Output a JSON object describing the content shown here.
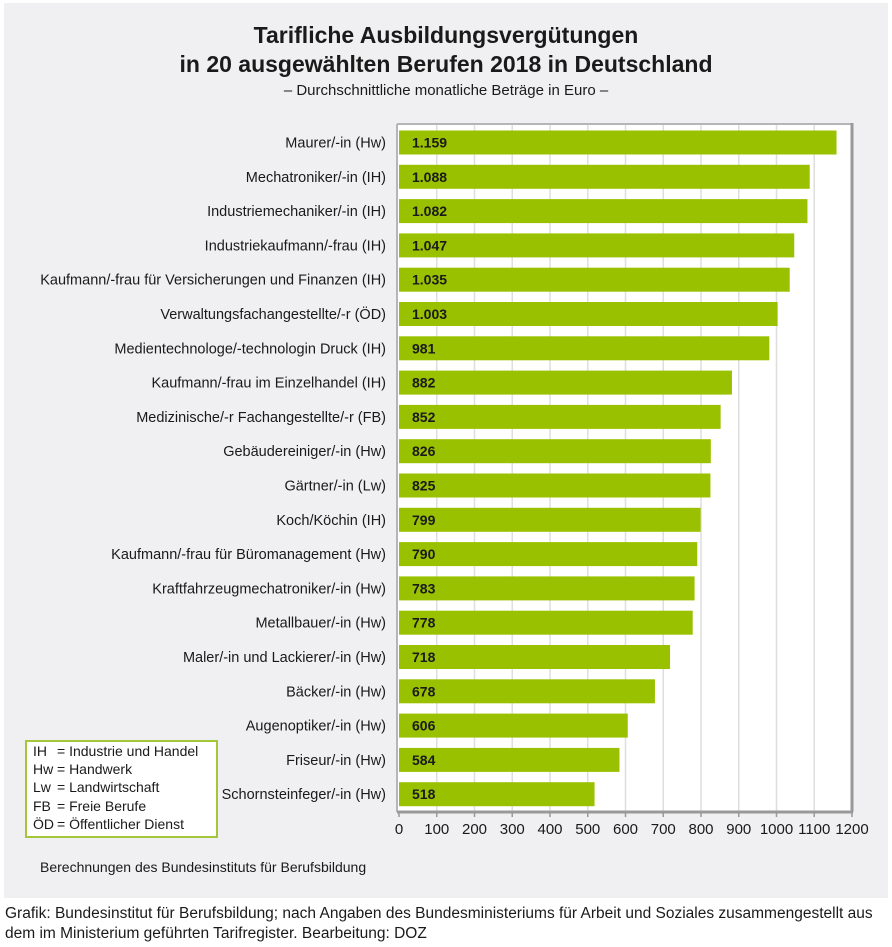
{
  "colors": {
    "bar": "#9ac100",
    "panel_background": "#f0eff1",
    "plot_background": "#ffffff",
    "grid": "#dedede",
    "axis_frame": "#999999",
    "legend_border": "#a4c639"
  },
  "chart_data": {
    "type": "bar",
    "orientation": "horizontal",
    "title": "Tarifliche Ausbildungsvergütungen in 20 ausgewählten Berufen 2018 in Deutschland",
    "title_lines": [
      "Tarifliche Ausbildungsvergütungen",
      "in 20 ausgewählten Berufen 2018 in Deutschland"
    ],
    "subtitle": "– Durchschnittliche monatliche Beträge in Euro –",
    "xlabel": "",
    "ylabel": "",
    "xlim": [
      0,
      1200
    ],
    "xticks": [
      0,
      100,
      200,
      300,
      400,
      500,
      600,
      700,
      800,
      900,
      1000,
      1100,
      1200
    ],
    "grid": true,
    "categories": [
      "Maurer/-in (Hw)",
      "Mechatroniker/-in (IH)",
      "Industriemechaniker/-in (IH)",
      "Industriekaufmann/-frau (IH)",
      "Kaufmann/-frau für Versicherungen und Finanzen (IH)",
      "Verwaltungsfachangestellte/-r (ÖD)",
      "Medientechnologe/-technologin Druck (IH)",
      "Kaufmann/-frau im Einzelhandel (IH)",
      "Medizinische/-r Fachangestellte/-r (FB)",
      "Gebäudereiniger/-in (Hw)",
      "Gärtner/-in (Lw)",
      "Koch/Köchin (IH)",
      "Kaufmann/-frau für Büromanagement (Hw)",
      "Kraftfahrzeugmechatroniker/-in (Hw)",
      "Metallbauer/-in (Hw)",
      "Maler/-in und Lackierer/-in (Hw)",
      "Bäcker/-in (Hw)",
      "Augenoptiker/-in (Hw)",
      "Friseur/-in (Hw)",
      "Schornsteinfeger/-in (Hw)"
    ],
    "values": [
      1159,
      1088,
      1082,
      1047,
      1035,
      1003,
      981,
      882,
      852,
      826,
      825,
      799,
      790,
      783,
      778,
      718,
      678,
      606,
      584,
      518
    ],
    "value_labels": [
      "1.159",
      "1.088",
      "1.082",
      "1.047",
      "1.035",
      "1.003",
      "981",
      "882",
      "852",
      "826",
      "825",
      "799",
      "790",
      "783",
      "778",
      "718",
      "678",
      "606",
      "584",
      "518"
    ],
    "legend": {
      "placement": "bottom-left",
      "entries": [
        {
          "abbr": "IH",
          "text": "= Industrie und Handel"
        },
        {
          "abbr": "Hw",
          "text": "= Handwerk"
        },
        {
          "abbr": "Lw",
          "text": "= Landwirtschaft"
        },
        {
          "abbr": "FB",
          "text": "= Freie Berufe"
        },
        {
          "abbr": "ÖD",
          "text": "= Öffentlicher Dienst"
        }
      ]
    },
    "source_note": "Berechnungen des Bundesinstituts für Berufsbildung"
  },
  "caption": "Grafik: Bundesinstitut für Berufsbildung; nach Angaben des Bundesministeriums für Arbeit und Soziales zusammengestellt aus dem im Ministerium geführten Tarifregister. Bearbeitung: DOZ"
}
